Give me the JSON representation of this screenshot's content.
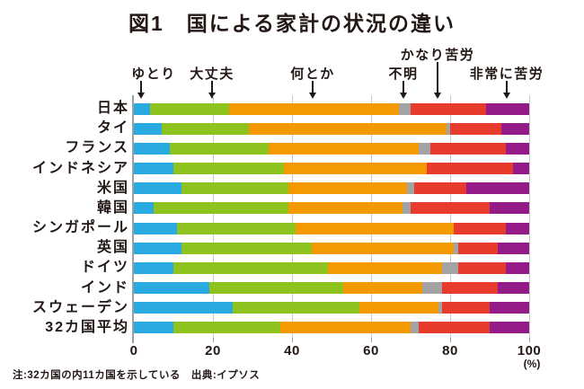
{
  "title": "図1　国による家計の状況の違い",
  "note": "注:32カ国の内11カ国を示している　出典:イプソス",
  "axis": {
    "ticks": [
      "0",
      "20",
      "40",
      "60",
      "80",
      "100"
    ],
    "unit": "(%)"
  },
  "chart_data": {
    "type": "bar",
    "stacked": true,
    "orientation": "horizontal",
    "title": "図1　国による家計の状況の違い",
    "xlim": [
      0,
      100
    ],
    "xlabel": "(%)",
    "grid": true,
    "legend_position": "top",
    "categories": [
      "日本",
      "タイ",
      "フランス",
      "インドネシア",
      "米国",
      "韓国",
      "シンガポール",
      "英国",
      "ドイツ",
      "インド",
      "スウェーデン",
      "32カ国平均"
    ],
    "series": [
      {
        "name": "ゆとり",
        "color": "#29ABE2",
        "values": [
          4,
          7,
          9,
          10,
          12,
          5,
          11,
          12,
          10,
          19,
          25,
          10
        ]
      },
      {
        "name": "大丈夫",
        "color": "#8DC21F",
        "values": [
          20,
          22,
          25,
          28,
          27,
          34,
          30,
          33,
          39,
          34,
          32,
          27
        ]
      },
      {
        "name": "何とか",
        "color": "#F49A00",
        "values": [
          43,
          50,
          38,
          36,
          30,
          29,
          40,
          36,
          29,
          20,
          20,
          33
        ]
      },
      {
        "name": "不明",
        "color": "#A3A3A4",
        "values": [
          3,
          1,
          3,
          0,
          2,
          2,
          0,
          1,
          4,
          5,
          1,
          2
        ]
      },
      {
        "name": "かなり苦労",
        "color": "#E73B2D",
        "values": [
          19,
          13,
          19,
          22,
          13,
          20,
          13,
          10,
          12,
          14,
          12,
          18
        ]
      },
      {
        "name": "非常に苦労",
        "color": "#951C88",
        "values": [
          11,
          7,
          6,
          4,
          16,
          10,
          6,
          8,
          6,
          8,
          10,
          10
        ]
      }
    ]
  }
}
